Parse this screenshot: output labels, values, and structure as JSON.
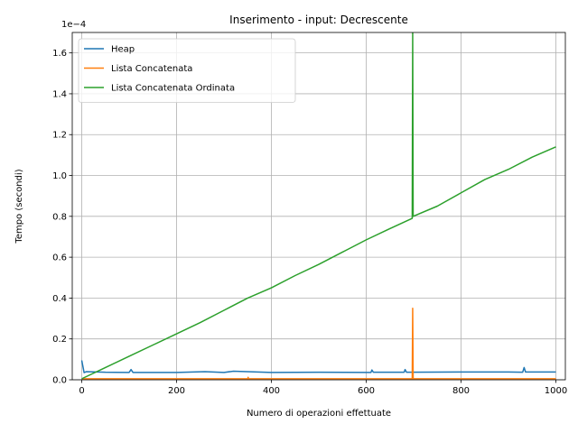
{
  "chart_data": {
    "type": "line",
    "title": "Inserimento - input: Decrescente",
    "xlabel": "Numero di operazioni effettuate",
    "ylabel": "Tempo (secondi)",
    "y_scale_label": "1e−4",
    "xlim": [
      -20,
      1020
    ],
    "ylim": [
      0,
      1.7
    ],
    "x_ticks": [
      0,
      200,
      400,
      600,
      800,
      1000
    ],
    "x_tick_labels": [
      "0",
      "200",
      "400",
      "600",
      "800",
      "1000"
    ],
    "y_ticks": [
      0,
      0.2,
      0.4,
      0.6,
      0.8,
      1.0,
      1.2,
      1.4,
      1.6
    ],
    "y_tick_labels": [
      "0.0",
      "0.2",
      "0.4",
      "0.6",
      "0.8",
      "1.0",
      "1.2",
      "1.4",
      "1.6"
    ],
    "grid": true,
    "legend_position": "upper-left",
    "series": [
      {
        "name": "Heap",
        "color": "#1f77b4",
        "points": [
          [
            0,
            0.095
          ],
          [
            5,
            0.035
          ],
          [
            10,
            0.04
          ],
          [
            50,
            0.037
          ],
          [
            100,
            0.036
          ],
          [
            104,
            0.05
          ],
          [
            108,
            0.036
          ],
          [
            200,
            0.036
          ],
          [
            260,
            0.04
          ],
          [
            300,
            0.036
          ],
          [
            320,
            0.042
          ],
          [
            400,
            0.036
          ],
          [
            500,
            0.037
          ],
          [
            610,
            0.036
          ],
          [
            612,
            0.048
          ],
          [
            615,
            0.037
          ],
          [
            680,
            0.037
          ],
          [
            682,
            0.05
          ],
          [
            685,
            0.037
          ],
          [
            800,
            0.038
          ],
          [
            900,
            0.038
          ],
          [
            930,
            0.037
          ],
          [
            933,
            0.06
          ],
          [
            936,
            0.038
          ],
          [
            1000,
            0.038
          ]
        ]
      },
      {
        "name": "Lista Concatenata",
        "color": "#ff7f0e",
        "points": [
          [
            0,
            0.005
          ],
          [
            100,
            0.005
          ],
          [
            350,
            0.005
          ],
          [
            351,
            0.012
          ],
          [
            352,
            0.005
          ],
          [
            697,
            0.005
          ],
          [
            698,
            0.35
          ],
          [
            699,
            0.005
          ],
          [
            1000,
            0.005
          ]
        ]
      },
      {
        "name": "Lista Concatenata Ordinata",
        "color": "#2ca02c",
        "points": [
          [
            0,
            0.005
          ],
          [
            50,
            0.06
          ],
          [
            100,
            0.115
          ],
          [
            150,
            0.17
          ],
          [
            200,
            0.225
          ],
          [
            250,
            0.28
          ],
          [
            300,
            0.34
          ],
          [
            350,
            0.4
          ],
          [
            400,
            0.45
          ],
          [
            450,
            0.51
          ],
          [
            500,
            0.565
          ],
          [
            550,
            0.625
          ],
          [
            600,
            0.685
          ],
          [
            650,
            0.74
          ],
          [
            697,
            0.79
          ],
          [
            698,
            1.7
          ],
          [
            699,
            0.8
          ],
          [
            750,
            0.85
          ],
          [
            800,
            0.915
          ],
          [
            850,
            0.98
          ],
          [
            900,
            1.03
          ],
          [
            950,
            1.09
          ],
          [
            1000,
            1.14
          ]
        ]
      }
    ]
  }
}
